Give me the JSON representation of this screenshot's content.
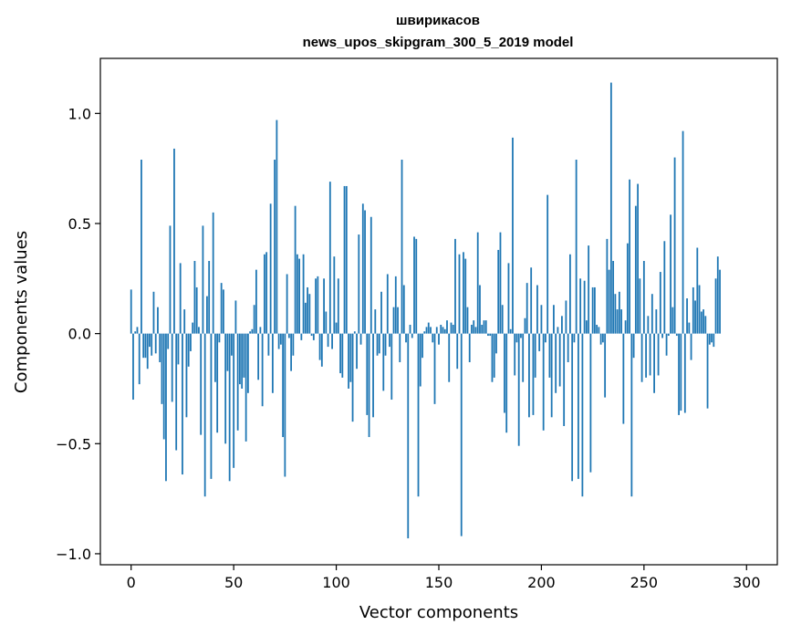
{
  "chart_data": {
    "type": "bar",
    "title_line1": "швирикасов",
    "title_line2": "news_upos_skipgram_300_5_2019 model",
    "xlabel": "Vector components",
    "ylabel": "Components values",
    "xlim": [
      -15,
      315
    ],
    "ylim": [
      -1.05,
      1.25
    ],
    "xticks": [
      0,
      50,
      100,
      150,
      200,
      250,
      300
    ],
    "xtick_labels": [
      "0",
      "50",
      "100",
      "150",
      "200",
      "250",
      "300"
    ],
    "yticks": [
      -1.0,
      -0.5,
      0.0,
      0.5,
      1.0
    ],
    "ytick_labels": [
      "−1.0",
      "−0.5",
      "0.0",
      "0.5",
      "1.0"
    ],
    "bar_color": "#1f77b4",
    "values": [
      0.2,
      -0.3,
      0.01,
      0.03,
      -0.23,
      0.79,
      -0.11,
      -0.11,
      -0.16,
      -0.06,
      -0.1,
      0.19,
      -0.09,
      0.12,
      -0.13,
      -0.32,
      -0.48,
      -0.67,
      -0.07,
      0.49,
      -0.31,
      0.84,
      -0.53,
      -0.14,
      0.32,
      -0.64,
      0.11,
      -0.38,
      -0.15,
      -0.08,
      0.05,
      0.33,
      0.21,
      0.03,
      -0.46,
      0.49,
      -0.74,
      0.17,
      0.33,
      -0.66,
      0.55,
      -0.22,
      -0.45,
      -0.04,
      0.23,
      0.2,
      -0.5,
      -0.17,
      -0.67,
      -0.1,
      -0.61,
      0.15,
      -0.44,
      -0.23,
      -0.25,
      -0.2,
      -0.49,
      -0.27,
      0.01,
      0.02,
      0.13,
      0.29,
      -0.21,
      0.03,
      -0.33,
      0.36,
      0.37,
      -0.1,
      0.59,
      -0.27,
      0.79,
      0.97,
      -0.07,
      -0.05,
      -0.47,
      -0.65,
      0.27,
      -0.02,
      -0.17,
      -0.1,
      0.58,
      0.36,
      0.34,
      -0.03,
      0.36,
      0.14,
      0.21,
      0.18,
      -0.01,
      -0.03,
      0.25,
      0.26,
      -0.12,
      -0.15,
      0.25,
      0.1,
      -0.06,
      0.69,
      -0.07,
      0.35,
      0.05,
      0.25,
      -0.18,
      -0.2,
      0.67,
      0.67,
      -0.25,
      -0.22,
      -0.4,
      0.01,
      -0.16,
      0.45,
      -0.05,
      0.59,
      0.56,
      -0.37,
      -0.47,
      0.53,
      -0.38,
      0.11,
      -0.1,
      -0.09,
      0.19,
      -0.26,
      -0.1,
      0.27,
      -0.06,
      -0.3,
      0.12,
      0.26,
      0.12,
      -0.13,
      0.79,
      0.22,
      -0.04,
      -0.93,
      0.04,
      -0.02,
      0.44,
      0.43,
      -0.74,
      -0.24,
      -0.11,
      0.01,
      0.03,
      0.05,
      0.03,
      -0.04,
      -0.32,
      0.03,
      -0.05,
      0.04,
      0.03,
      0.02,
      0.06,
      -0.22,
      0.05,
      0.04,
      0.43,
      -0.16,
      0.36,
      -0.92,
      0.37,
      0.34,
      0.12,
      -0.13,
      0.04,
      0.06,
      0.03,
      0.46,
      0.22,
      0.04,
      0.06,
      0.06,
      -0.01,
      -0.01,
      -0.22,
      -0.2,
      -0.09,
      0.38,
      0.46,
      0.13,
      -0.36,
      -0.45,
      0.32,
      0.02,
      0.89,
      -0.19,
      -0.04,
      -0.51,
      -0.02,
      -0.22,
      0.07,
      0.23,
      -0.38,
      0.3,
      -0.37,
      -0.2,
      0.22,
      -0.08,
      0.13,
      -0.44,
      -0.04,
      0.63,
      -0.2,
      -0.38,
      0.13,
      -0.27,
      0.03,
      -0.24,
      0.08,
      -0.42,
      0.15,
      -0.13,
      0.36,
      -0.67,
      -0.04,
      0.79,
      -0.66,
      0.25,
      -0.74,
      0.24,
      0.06,
      0.4,
      -0.63,
      0.21,
      0.21,
      0.04,
      0.03,
      -0.05,
      -0.04,
      -0.29,
      0.43,
      0.29,
      1.14,
      0.33,
      0.18,
      0.11,
      0.19,
      0.11,
      -0.41,
      0.06,
      0.41,
      0.7,
      -0.74,
      -0.11,
      0.58,
      0.68,
      0.25,
      -0.22,
      0.33,
      -0.2,
      0.08,
      -0.19,
      0.18,
      -0.27,
      0.11,
      -0.19,
      0.28,
      -0.02,
      0.42,
      -0.1,
      -0.01,
      0.54,
      0.12,
      0.8,
      -0.01,
      -0.37,
      -0.35,
      0.92,
      -0.36,
      0.16,
      0.05,
      -0.12,
      0.21,
      0.15,
      0.39,
      0.22,
      0.1,
      0.11,
      0.08,
      -0.34,
      -0.05,
      -0.04,
      -0.06,
      0.25,
      0.35,
      0.29
    ]
  }
}
